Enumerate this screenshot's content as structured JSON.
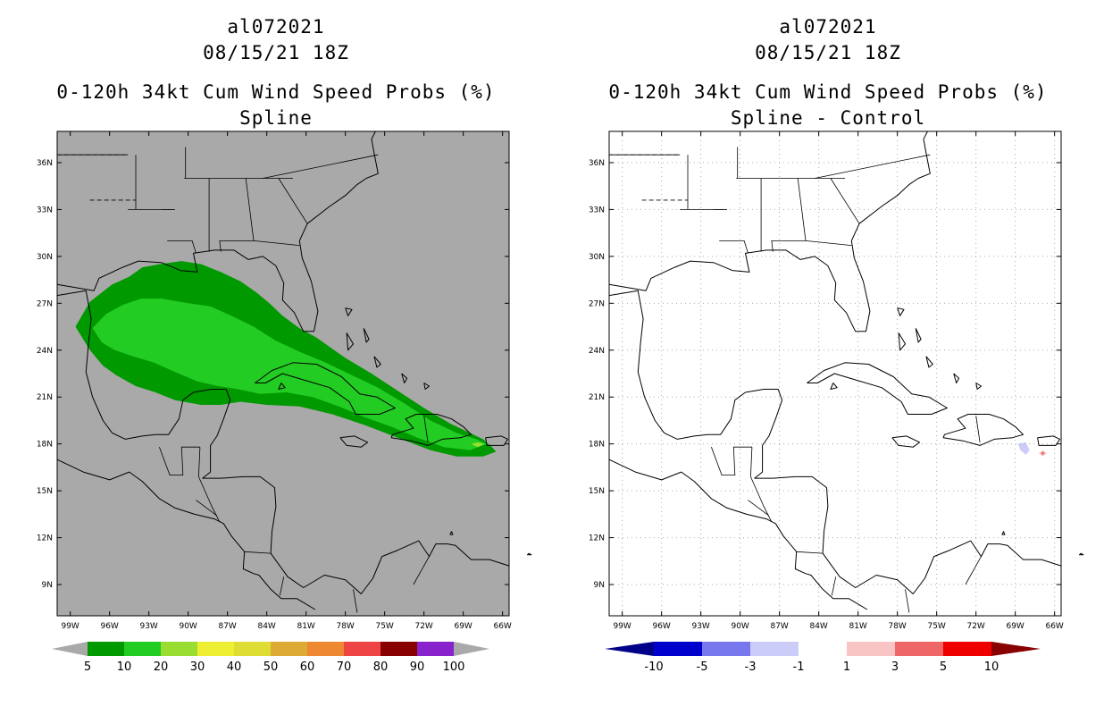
{
  "left_panel": {
    "storm_id": "al072021",
    "datetime": "08/15/21 18Z",
    "product_title": "0-120h 34kt Cum Wind Speed Probs (%)",
    "subtitle": "Spline",
    "background_color": "#a9a9a9",
    "lat_labels": [
      "36N",
      "33N",
      "30N",
      "27N",
      "24N",
      "21N",
      "18N",
      "15N",
      "12N",
      "9N"
    ],
    "lon_labels": [
      "99W",
      "96W",
      "93W",
      "90W",
      "87W",
      "84W",
      "81W",
      "78W",
      "75W",
      "72W",
      "69W",
      "66W"
    ],
    "colorbar": {
      "labels": [
        "5",
        "10",
        "20",
        "30",
        "40",
        "50",
        "60",
        "70",
        "80",
        "90",
        "100"
      ],
      "colors": [
        "#009900",
        "#22cc22",
        "#99dd33",
        "#eeee33",
        "#dddd33",
        "#ddaa33",
        "#ee8833",
        "#ee4444",
        "#880000",
        "#8822cc"
      ]
    },
    "probability_field": [
      {
        "range": "5-10%",
        "color": "#009900"
      },
      {
        "range": "10-20%",
        "color": "#22cc22"
      },
      {
        "range": "20-30%",
        "color": "#99dd33"
      }
    ]
  },
  "right_panel": {
    "storm_id": "al072021",
    "datetime": "08/15/21 18Z",
    "product_title": "0-120h 34kt Cum Wind Speed Probs (%)",
    "subtitle": "Spline - Control",
    "background_color": "#ffffff",
    "lat_labels": [
      "36N",
      "33N",
      "30N",
      "27N",
      "24N",
      "21N",
      "18N",
      "15N",
      "12N",
      "9N"
    ],
    "lon_labels": [
      "99W",
      "96W",
      "93W",
      "90W",
      "87W",
      "84W",
      "81W",
      "78W",
      "75W",
      "72W",
      "69W",
      "66W"
    ],
    "colorbar": {
      "labels": [
        "-10",
        "-5",
        "-3",
        "-1",
        "1",
        "3",
        "5",
        "10"
      ],
      "colors": [
        "#0000cc",
        "#7777ee",
        "#ccccf8",
        "#ffffff",
        "#f8c4c4",
        "#ee6666",
        "#ee0000"
      ],
      "low_arrow_color": "#000088",
      "high_arrow_color": "#880000"
    },
    "difference_spots": [
      {
        "value_range": "-3 to -1",
        "color": "#ccccf8"
      },
      {
        "value_range": "1 to 3",
        "color": "#f8c4c4"
      }
    ]
  }
}
